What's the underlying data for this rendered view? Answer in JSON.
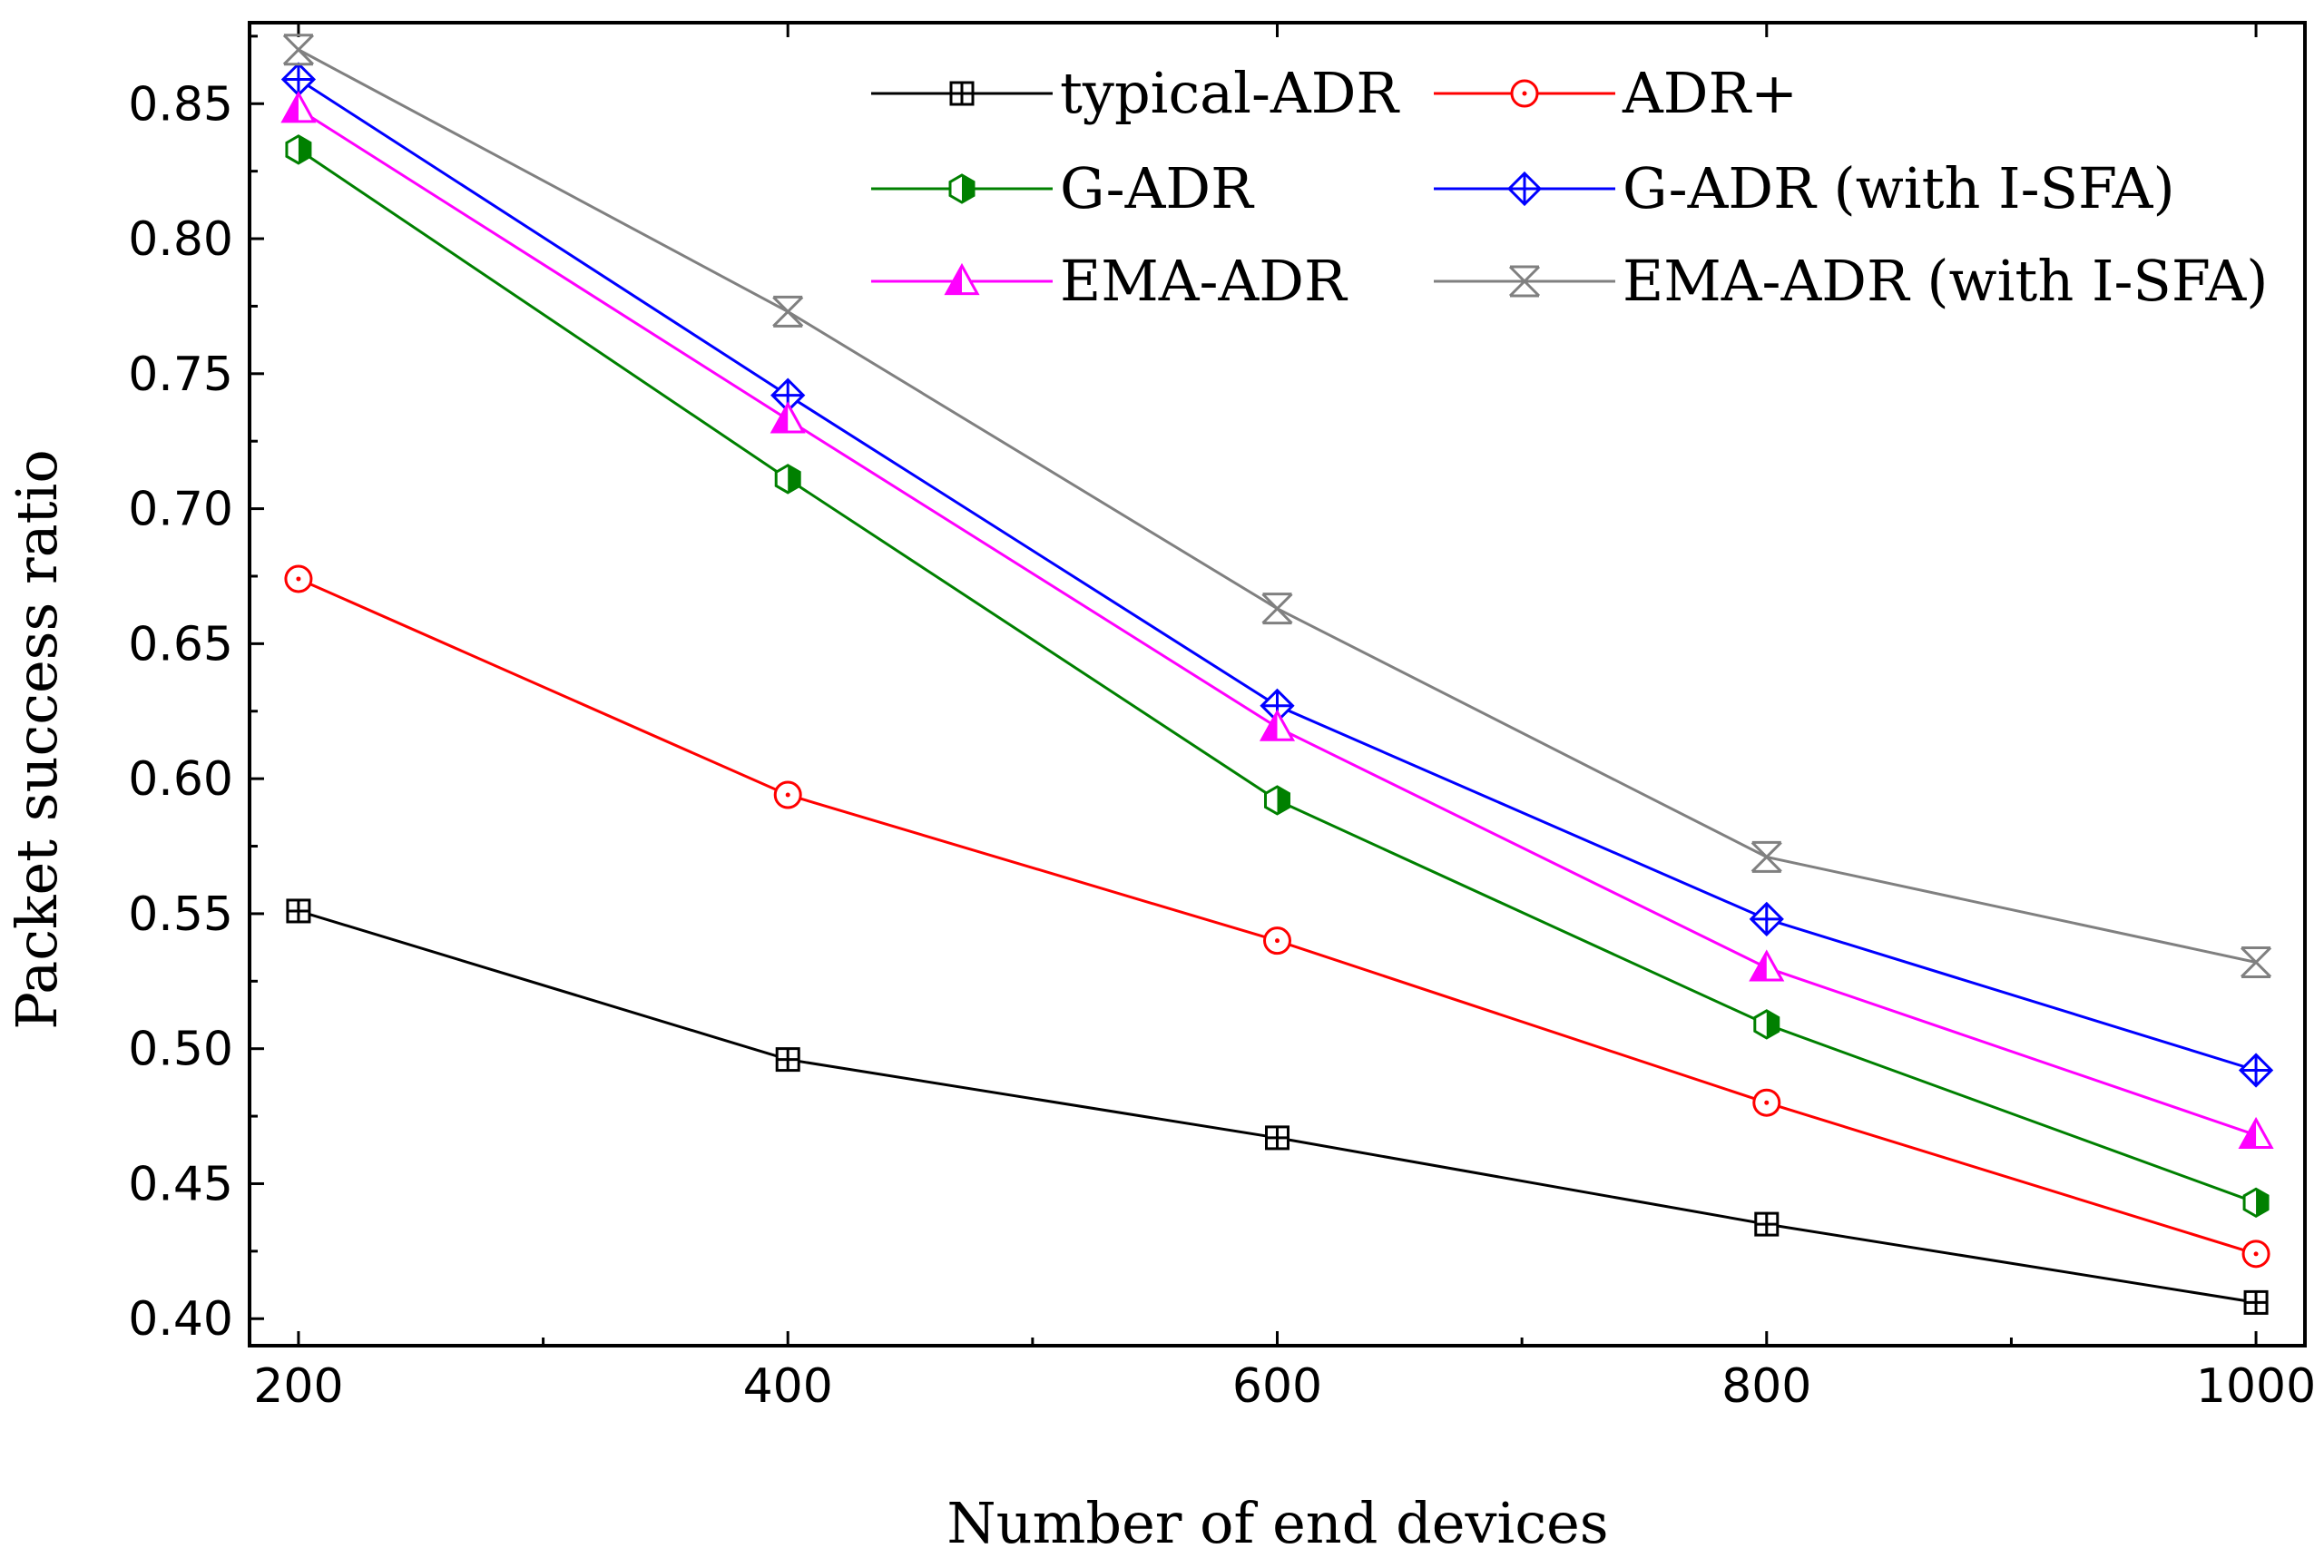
{
  "chart_data": {
    "type": "line",
    "title": "",
    "xlabel": "Number of end devices",
    "ylabel": "Packet success ratio",
    "x": [
      200,
      400,
      600,
      800,
      1000
    ],
    "xticks": [
      "200",
      "400",
      "600",
      "800",
      "1000"
    ],
    "yticks": [
      "0.40",
      "0.45",
      "0.50",
      "0.55",
      "0.60",
      "0.65",
      "0.70",
      "0.75",
      "0.80",
      "0.85"
    ],
    "xlim": [
      180,
      1020
    ],
    "ylim": [
      0.39,
      0.88
    ],
    "grid": false,
    "legend_position": "top-right",
    "series": [
      {
        "name": "typical-ADR",
        "color": "#000000",
        "marker": "square-cross",
        "values": [
          0.551,
          0.496,
          0.467,
          0.435,
          0.406
        ]
      },
      {
        "name": "ADR+",
        "color": "#ff0000",
        "marker": "circle-dot",
        "values": [
          0.674,
          0.594,
          0.54,
          0.48,
          0.424
        ]
      },
      {
        "name": "G-ADR",
        "color": "#008000",
        "marker": "half-hexagon",
        "values": [
          0.833,
          0.711,
          0.592,
          0.509,
          0.443
        ]
      },
      {
        "name": "G-ADR (with I-SFA)",
        "color": "#0000ff",
        "marker": "diamond-cross",
        "values": [
          0.859,
          0.742,
          0.627,
          0.548,
          0.492
        ]
      },
      {
        "name": "EMA-ADR",
        "color": "#ff00ff",
        "marker": "half-triangle",
        "values": [
          0.848,
          0.733,
          0.619,
          0.53,
          0.468
        ]
      },
      {
        "name": "EMA-ADR (with I-SFA)",
        "color": "#808080",
        "marker": "hourglass",
        "values": [
          0.87,
          0.773,
          0.663,
          0.571,
          0.532
        ]
      }
    ]
  }
}
